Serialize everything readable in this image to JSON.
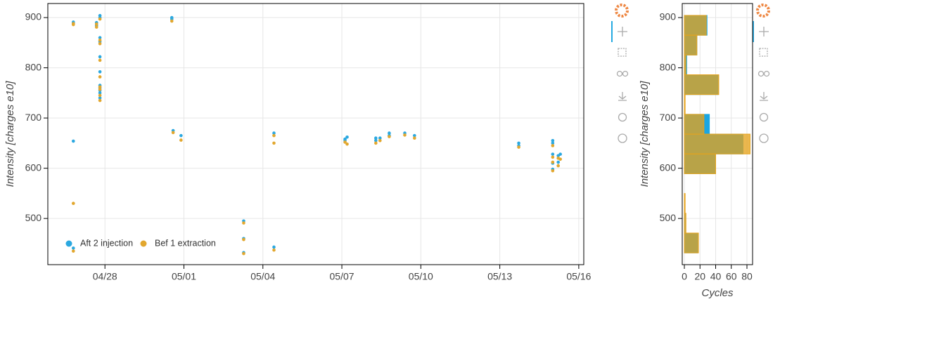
{
  "chart_data": [
    {
      "type": "scatter",
      "ylabel": "Intensity [charges e10]",
      "xlim": [
        115.83,
        136.19
      ],
      "xticks": [
        {
          "value": 118,
          "label": "04/28"
        },
        {
          "value": 121,
          "label": "05/01"
        },
        {
          "value": 124,
          "label": "05/04"
        },
        {
          "value": 127,
          "label": "05/07"
        },
        {
          "value": 130,
          "label": "05/10"
        },
        {
          "value": 133,
          "label": "05/13"
        },
        {
          "value": 136,
          "label": "05/16"
        }
      ],
      "ylim": [
        408,
        928
      ],
      "yticks": [
        500,
        600,
        700,
        800,
        900
      ],
      "grid": true,
      "legend": "bottom_left",
      "series": [
        {
          "name": "Aft 2 injection",
          "color": "#2ba8e0",
          "x": [
            116.8,
            116.8,
            116.8,
            116.8,
            117.68,
            117.68,
            117.68,
            117.81,
            117.81,
            117.81,
            117.81,
            117.81,
            117.81,
            117.81,
            117.81,
            117.81,
            117.81,
            117.81,
            120.54,
            120.54,
            120.59,
            120.89,
            123.27,
            123.27,
            123.27,
            124.42,
            124.42,
            127.12,
            127.12,
            127.2,
            128.29,
            128.29,
            128.45,
            128.8,
            128.8,
            129.39,
            129.76,
            133.72,
            133.72,
            135.01,
            135.01,
            135.01,
            135.01,
            135.01,
            135.22,
            135.22,
            135.3
          ],
          "values": [
            891,
            888,
            654,
            441,
            890,
            887,
            884,
            904,
            900,
            860,
            852,
            822,
            792,
            765,
            760,
            755,
            750,
            740,
            900,
            897,
            675,
            665,
            495,
            460,
            432,
            670,
            443,
            658,
            655,
            662,
            660,
            655,
            660,
            670,
            665,
            670,
            665,
            650,
            645,
            655,
            650,
            628,
            610,
            598,
            625,
            612,
            628
          ]
        },
        {
          "name": "Bef 1 extraction",
          "color": "#e2a72e",
          "x": [
            116.8,
            116.8,
            116.8,
            116.8,
            117.68,
            117.68,
            117.81,
            117.81,
            117.81,
            117.81,
            117.81,
            117.81,
            117.81,
            117.81,
            117.81,
            120.54,
            120.59,
            120.89,
            123.27,
            123.27,
            123.27,
            124.42,
            124.42,
            124.42,
            127.12,
            127.2,
            128.29,
            128.45,
            128.8,
            129.39,
            129.76,
            133.72,
            135.01,
            135.01,
            135.01,
            135.01,
            135.22,
            135.22,
            135.3
          ],
          "values": [
            888,
            886,
            530,
            435,
            887,
            881,
            897,
            855,
            848,
            815,
            782,
            762,
            757,
            745,
            735,
            893,
            671,
            656,
            491,
            458,
            430,
            665,
            650,
            437,
            652,
            648,
            650,
            655,
            663,
            666,
            660,
            642,
            645,
            622,
            612,
            595,
            620,
            605,
            618
          ]
        }
      ]
    },
    {
      "type": "histogram",
      "orientation": "horizontal",
      "ylabel": "Intensity [charges e10]",
      "xlabel": "Cycles",
      "xlim": [
        -2.7,
        87.2
      ],
      "xticks": [
        0,
        20,
        40,
        60,
        80
      ],
      "ylim": [
        408,
        928
      ],
      "yticks": [
        500,
        600,
        700,
        800,
        900
      ],
      "grid": true,
      "bins": [
        431.5,
        470.9,
        510.3,
        549.7,
        589.1,
        628.5,
        667.9,
        707.3,
        746.7,
        786.1,
        825.5,
        864.9,
        904.3
      ],
      "series": [
        {
          "name": "Aft 2 injection",
          "color": "#1aa6e2",
          "counts": [
            17,
            1,
            0,
            0,
            40,
            75,
            32,
            0,
            43,
            3,
            16,
            29
          ]
        },
        {
          "name": "Bef 1 extraction",
          "color": "#e6a31c",
          "counts": [
            18,
            2,
            1,
            0,
            40,
            84,
            25,
            1,
            44,
            2,
            16,
            28
          ]
        }
      ]
    }
  ]
}
